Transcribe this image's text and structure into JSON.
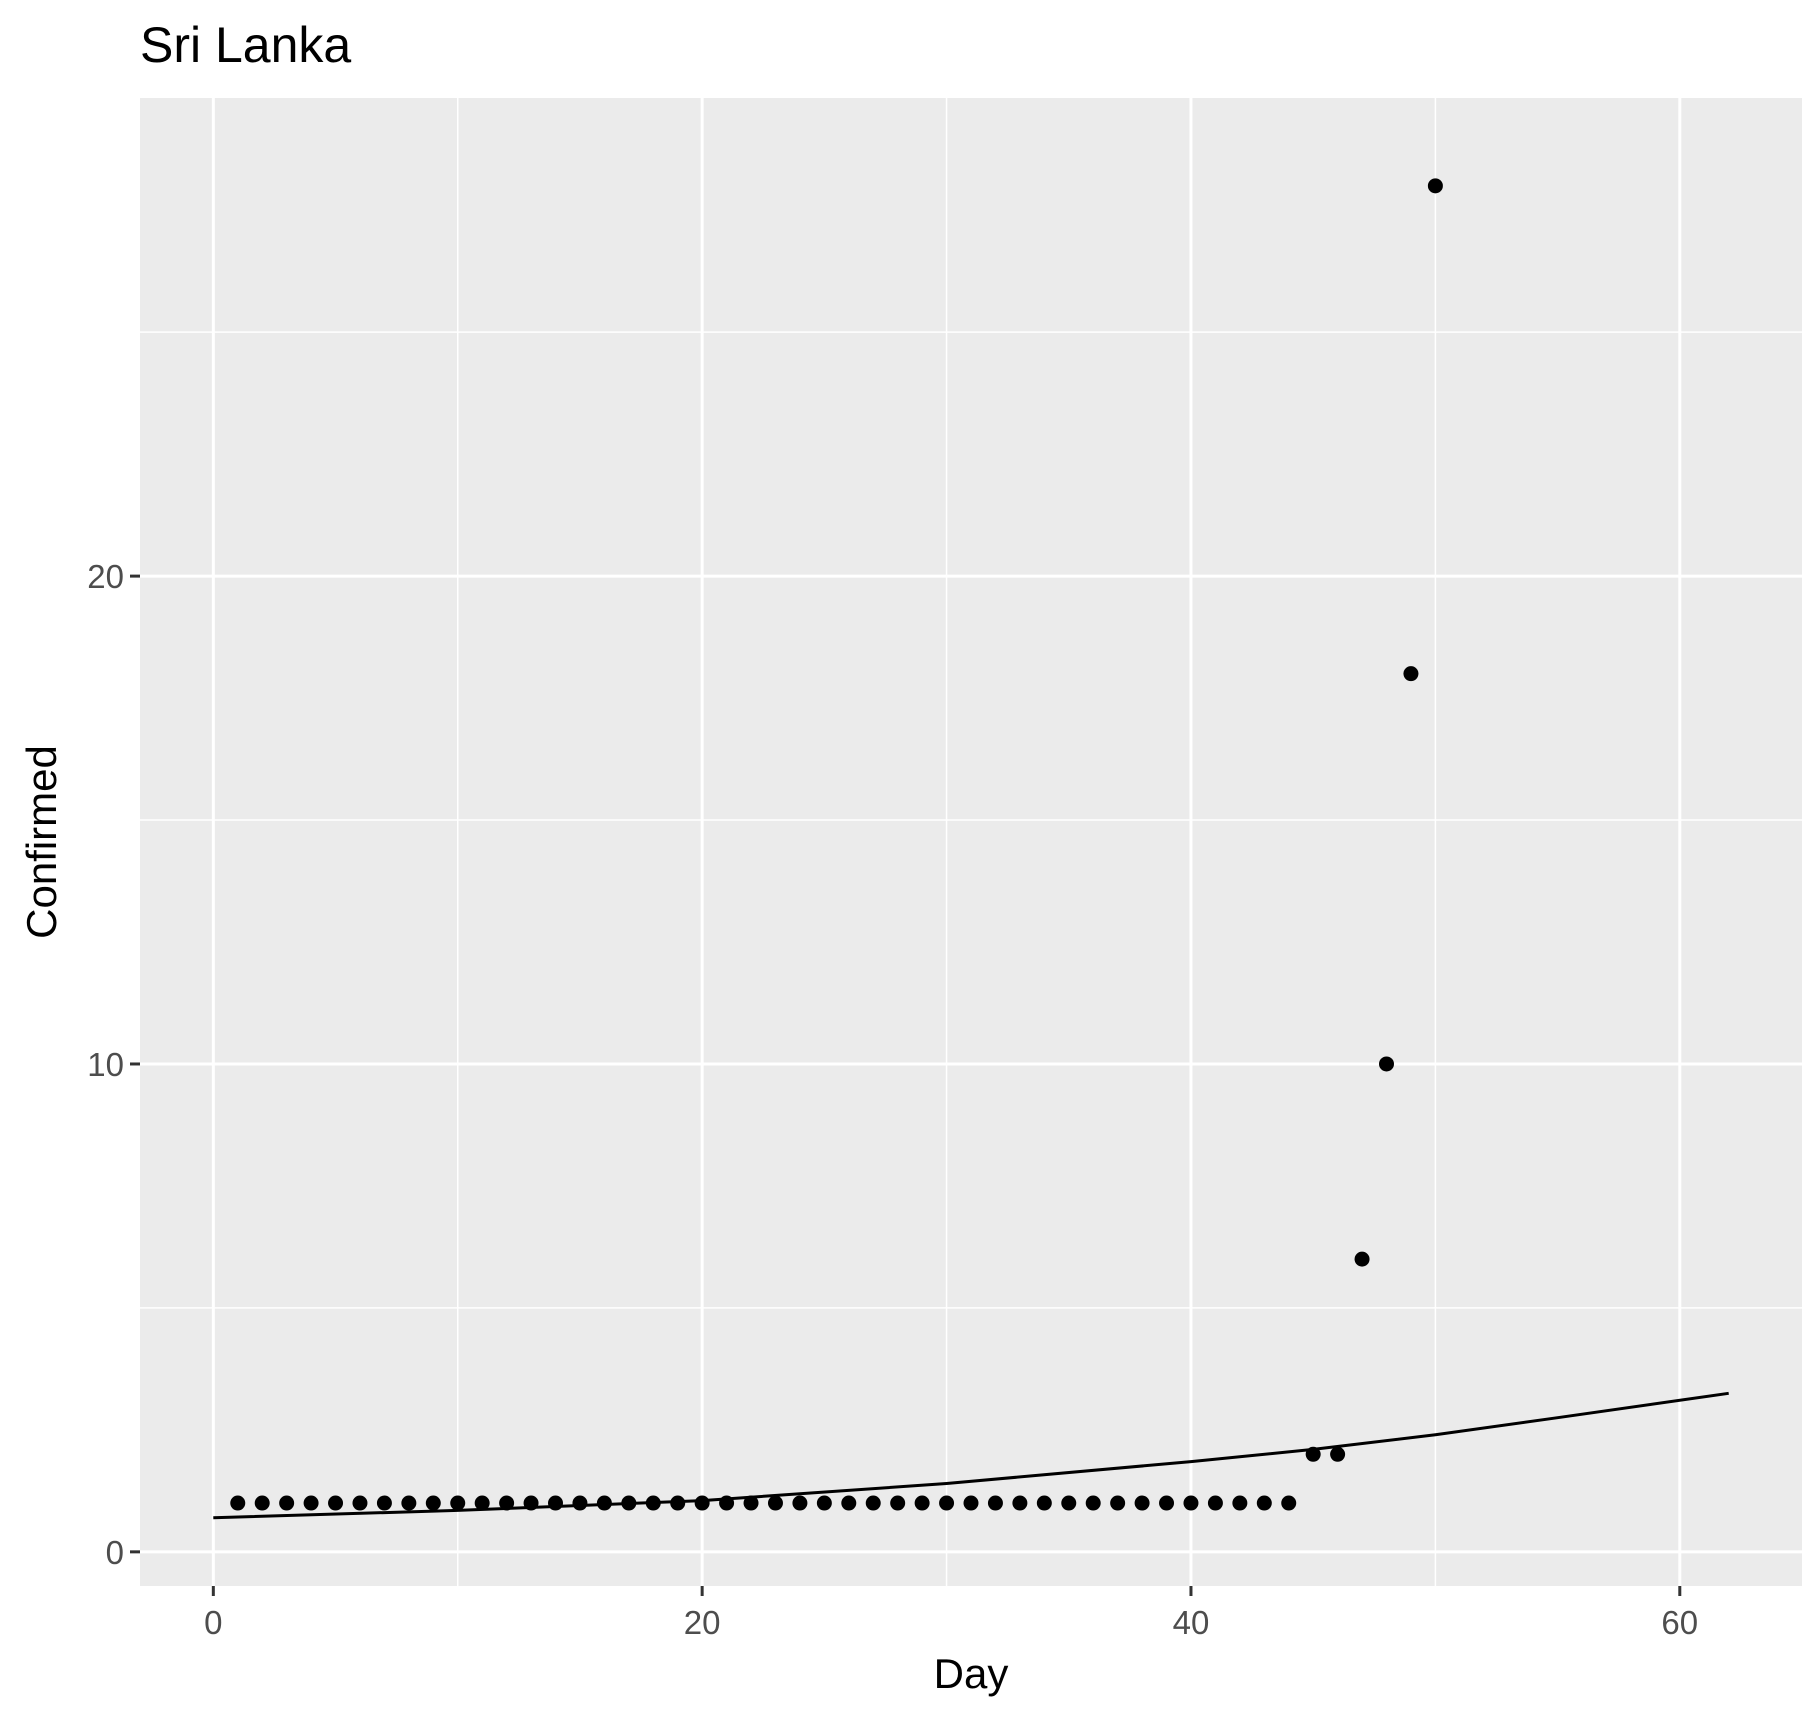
{
  "chart_data": {
    "type": "scatter",
    "title": "Sri Lanka",
    "xlabel": "Day",
    "ylabel": "Confirmed",
    "xlim": [
      -3,
      65
    ],
    "ylim": [
      -0.7,
      29.8
    ],
    "x_ticks": [
      0,
      20,
      40,
      60
    ],
    "x_tick_labels": [
      "0",
      "20",
      "40",
      "60"
    ],
    "x_minor_ticks": [
      10,
      30,
      50
    ],
    "y_ticks": [
      0,
      10,
      20
    ],
    "y_tick_labels": [
      "0",
      "10",
      "20"
    ],
    "y_minor_ticks": [
      5,
      15,
      25
    ],
    "grid": true,
    "legend": "none",
    "colors": {
      "panel_background": "#ebebeb",
      "grid": "#ffffff",
      "points": "#000000",
      "line": "#000000",
      "tick_label": "#4d4d4d"
    },
    "points": {
      "x": [
        1,
        2,
        3,
        4,
        5,
        6,
        7,
        8,
        9,
        10,
        11,
        12,
        13,
        14,
        15,
        16,
        17,
        18,
        19,
        20,
        21,
        22,
        23,
        24,
        25,
        26,
        27,
        28,
        29,
        30,
        31,
        32,
        33,
        34,
        35,
        36,
        37,
        38,
        39,
        40,
        41,
        42,
        43,
        44,
        45,
        46,
        47,
        48,
        49,
        50
      ],
      "y": [
        1,
        1,
        1,
        1,
        1,
        1,
        1,
        1,
        1,
        1,
        1,
        1,
        1,
        1,
        1,
        1,
        1,
        1,
        1,
        1,
        1,
        1,
        1,
        1,
        1,
        1,
        1,
        1,
        1,
        1,
        1,
        1,
        1,
        1,
        1,
        1,
        1,
        1,
        1,
        1,
        1,
        1,
        1,
        1,
        2,
        2,
        6,
        10,
        18,
        28
      ]
    },
    "fit_line": {
      "x": [
        0,
        10,
        20,
        30,
        40,
        45,
        50,
        55,
        62
      ],
      "y": [
        0.7,
        0.85,
        1.05,
        1.4,
        1.85,
        2.1,
        2.4,
        2.75,
        3.25
      ]
    }
  }
}
